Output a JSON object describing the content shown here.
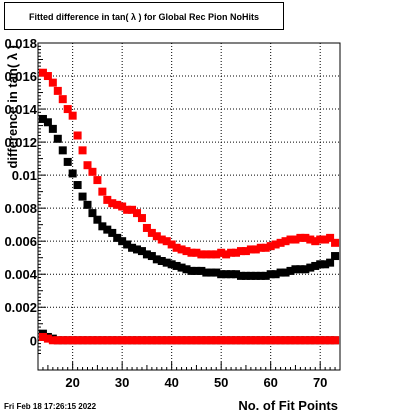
{
  "chart_data": {
    "type": "scatter",
    "title": "Fitted difference in tan( λ ) for Global Rec Pion NoHits",
    "xlabel": "No. of Fit Points",
    "ylabel": "difference in tan( λ )",
    "xlim": [
      13,
      74
    ],
    "ylim": [
      -0.0018,
      0.018
    ],
    "grid": true,
    "xticks": [
      20,
      30,
      40,
      50,
      60,
      70
    ],
    "yticks": [
      0,
      0.002,
      0.004,
      0.006,
      0.008,
      0.01,
      0.012,
      0.014,
      0.016,
      0.018
    ],
    "ytick_labels": [
      "0",
      "0.002",
      "0.004",
      "0.006",
      "0.008",
      "0.01",
      "0.012",
      "0.014",
      "0.016",
      "0.018"
    ],
    "colors": {
      "black": "#000000",
      "red": "#ff0000"
    },
    "series": [
      {
        "color": "#000000",
        "x": [
          14,
          15,
          16,
          17,
          18,
          19,
          20,
          21,
          22,
          23,
          24,
          25,
          26,
          27,
          28,
          29,
          30,
          31,
          32,
          33,
          34,
          35,
          36,
          37,
          38,
          39,
          40,
          41,
          42,
          43,
          44,
          45,
          46,
          47,
          48,
          49,
          50,
          51,
          52,
          53,
          54,
          55,
          56,
          57,
          58,
          59,
          60,
          61,
          62,
          63,
          64,
          65,
          66,
          67,
          68,
          69,
          70,
          71,
          72,
          73
        ],
        "y": [
          0.0134,
          0.0132,
          0.0128,
          0.0122,
          0.0115,
          0.0108,
          0.0101,
          0.0094,
          0.0087,
          0.0082,
          0.0077,
          0.0073,
          0.0069,
          0.0067,
          0.0065,
          0.0062,
          0.006,
          0.0058,
          0.0056,
          0.0055,
          0.0054,
          0.0052,
          0.0051,
          0.0049,
          0.0048,
          0.0047,
          0.0046,
          0.0045,
          0.0044,
          0.0043,
          0.0042,
          0.0042,
          0.0042,
          0.0041,
          0.0041,
          0.0041,
          0.004,
          0.004,
          0.004,
          0.004,
          0.0039,
          0.0039,
          0.0039,
          0.0039,
          0.0039,
          0.0039,
          0.004,
          0.004,
          0.0041,
          0.0041,
          0.0042,
          0.0043,
          0.0043,
          0.0043,
          0.0044,
          0.0045,
          0.0046,
          0.0046,
          0.0047,
          0.0051
        ]
      },
      {
        "color": "#ff0000",
        "x": [
          14,
          15,
          16,
          17,
          18,
          19,
          20,
          21,
          22,
          23,
          24,
          25,
          26,
          27,
          28,
          29,
          30,
          31,
          32,
          33,
          34,
          35,
          36,
          37,
          38,
          39,
          40,
          41,
          42,
          43,
          44,
          45,
          46,
          47,
          48,
          49,
          50,
          51,
          52,
          53,
          54,
          55,
          56,
          57,
          58,
          59,
          60,
          61,
          62,
          63,
          64,
          65,
          66,
          67,
          68,
          69,
          70,
          71,
          72,
          73
        ],
        "y": [
          0.0162,
          0.016,
          0.0156,
          0.0151,
          0.0146,
          0.014,
          0.0136,
          0.0124,
          0.0115,
          0.0106,
          0.0102,
          0.0097,
          0.009,
          0.0085,
          0.0083,
          0.0082,
          0.0081,
          0.0079,
          0.0079,
          0.0077,
          0.0074,
          0.0068,
          0.0065,
          0.0063,
          0.0061,
          0.006,
          0.0058,
          0.0056,
          0.0055,
          0.0054,
          0.0053,
          0.0053,
          0.0052,
          0.0052,
          0.0052,
          0.0052,
          0.0053,
          0.0052,
          0.0053,
          0.0053,
          0.0054,
          0.0054,
          0.0055,
          0.0055,
          0.0056,
          0.0056,
          0.0057,
          0.0058,
          0.0059,
          0.006,
          0.0061,
          0.0061,
          0.0062,
          0.0062,
          0.0061,
          0.006,
          0.0061,
          0.0061,
          0.0062,
          0.0059
        ]
      },
      {
        "color": "#000000",
        "x": [
          14,
          15,
          16,
          17,
          18,
          19,
          20,
          21,
          22,
          23,
          24,
          25,
          26,
          27,
          28,
          29,
          30,
          31,
          32,
          33,
          34,
          35,
          36,
          37,
          38,
          39,
          40,
          41,
          42,
          43,
          44,
          45,
          46,
          47,
          48,
          49,
          50,
          51,
          52,
          53,
          54,
          55,
          56,
          57,
          58,
          59,
          60,
          61,
          62,
          63,
          64,
          65,
          66,
          67,
          68,
          69,
          70,
          71,
          72,
          73
        ],
        "y": [
          0.0004,
          0.0002,
          0.0001,
          0,
          0,
          0,
          0,
          0,
          0,
          0,
          0,
          0,
          0,
          0,
          0,
          0,
          0,
          0,
          0,
          0,
          0,
          0,
          0,
          0,
          0,
          0,
          0,
          0,
          0,
          0,
          0,
          0,
          0,
          0,
          0,
          0,
          0,
          0,
          0,
          0,
          0,
          0,
          0,
          0,
          0,
          0,
          0,
          0,
          0,
          0,
          0,
          0,
          0,
          0,
          0,
          0,
          0,
          0,
          0,
          0
        ]
      },
      {
        "color": "#ff0000",
        "x": [
          14,
          15,
          16,
          17,
          18,
          19,
          20,
          21,
          22,
          23,
          24,
          25,
          26,
          27,
          28,
          29,
          30,
          31,
          32,
          33,
          34,
          35,
          36,
          37,
          38,
          39,
          40,
          41,
          42,
          43,
          44,
          45,
          46,
          47,
          48,
          49,
          50,
          51,
          52,
          53,
          54,
          55,
          56,
          57,
          58,
          59,
          60,
          61,
          62,
          63,
          64,
          65,
          66,
          67,
          68,
          69,
          70,
          71,
          72,
          73
        ],
        "y": [
          0.0002,
          0.0001,
          0,
          0,
          0,
          0,
          0,
          0,
          0,
          0,
          0,
          0,
          0,
          0,
          0,
          0,
          0,
          0,
          0,
          0,
          0,
          0,
          0,
          0,
          0,
          0,
          0,
          0,
          0,
          0,
          0,
          0,
          0,
          0,
          0,
          0,
          0,
          0,
          0,
          0,
          0,
          0,
          0,
          0,
          0,
          0,
          0,
          0,
          0,
          0,
          0,
          0,
          0,
          0,
          0,
          0,
          0,
          0,
          0,
          0
        ]
      }
    ]
  },
  "footer": {
    "date": "Fri Feb 18 17:26:15 2022"
  }
}
